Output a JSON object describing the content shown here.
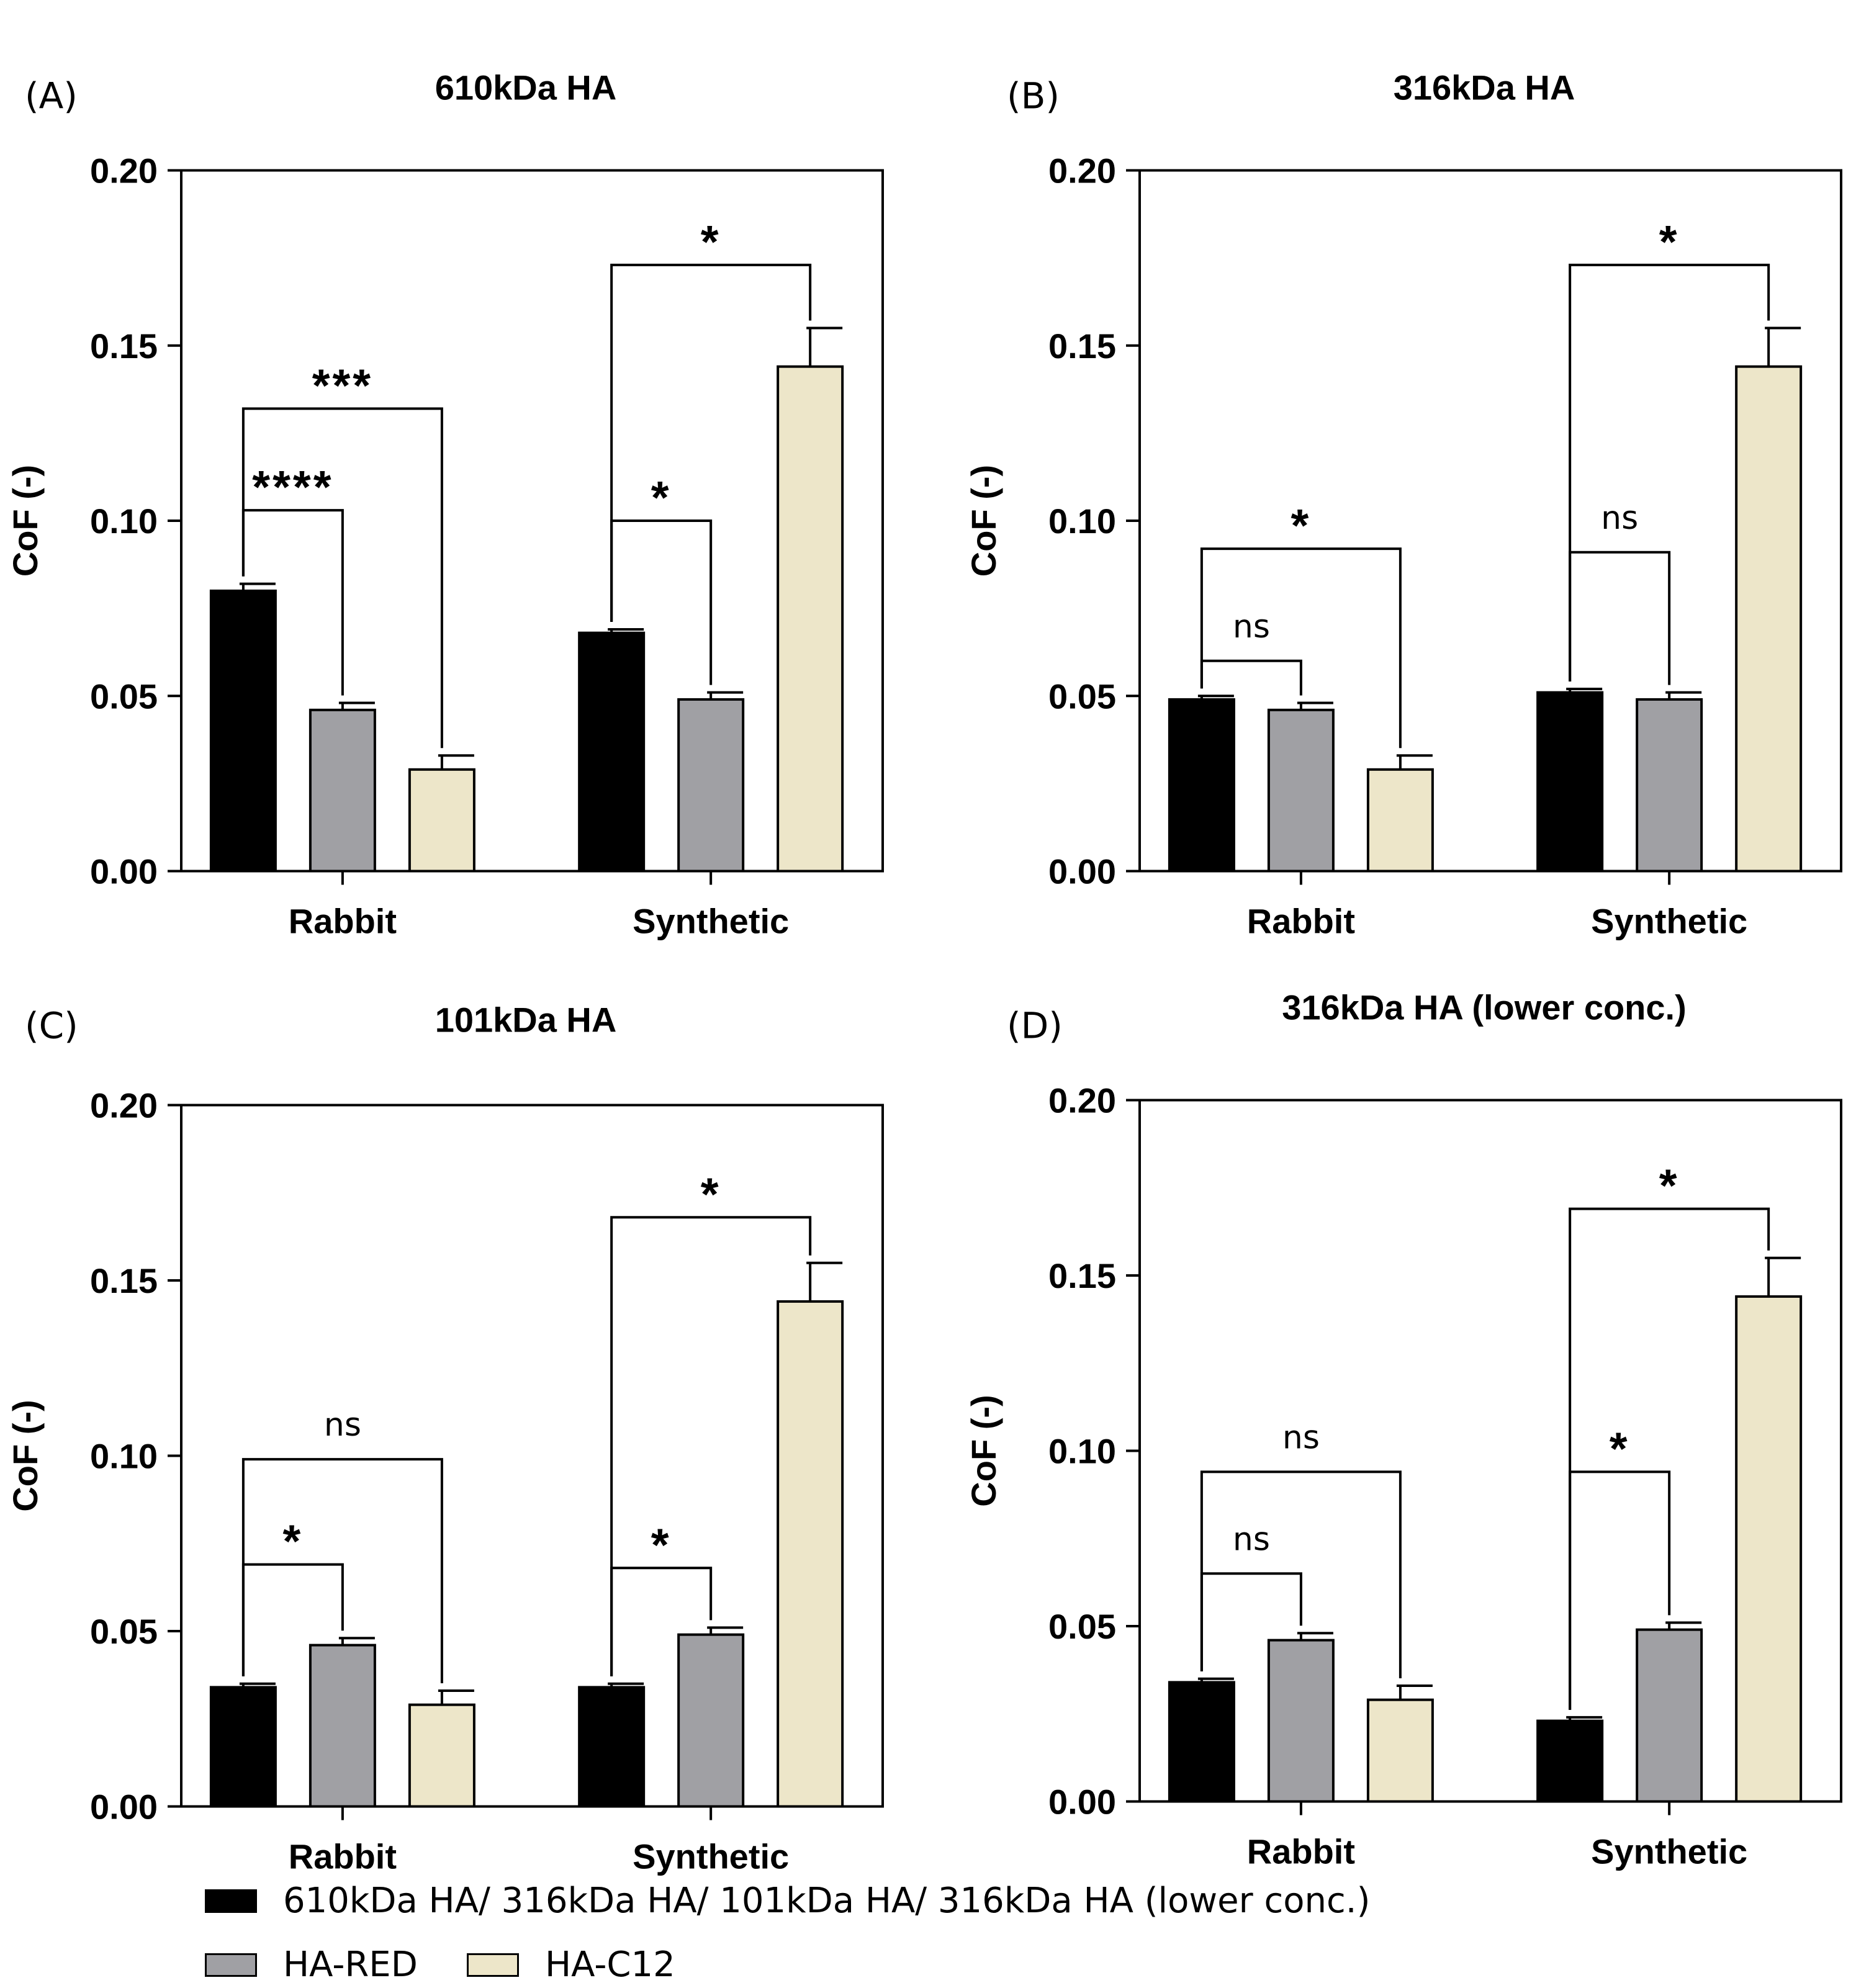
{
  "figure": {
    "colors": {
      "HA": "#000000",
      "HA-RED": "#a0a0a4",
      "HA-C12": "#ede6c9",
      "axis": "#000000"
    },
    "legend": {
      "ha_label": "610kDa HA/  316kDa HA/  101kDa HA/  316kDa HA (lower conc.)",
      "red_label": "HA-RED",
      "c12_label": "HA-C12"
    }
  },
  "chart_data": [
    {
      "panel": "(A)",
      "title": "610kDa HA",
      "type": "bar",
      "ylabel": "CoF (-)",
      "ylim": [
        0,
        0.2
      ],
      "yticks": [
        "0.00",
        "0.05",
        "0.10",
        "0.15",
        "0.20"
      ],
      "categories": [
        "Rabbit",
        "Synthetic"
      ],
      "series": [
        {
          "name": "HA",
          "values": [
            0.08,
            0.068
          ],
          "errors": [
            0.002,
            0.001
          ]
        },
        {
          "name": "HA-RED",
          "values": [
            0.046,
            0.049
          ],
          "errors": [
            0.002,
            0.002
          ]
        },
        {
          "name": "HA-C12",
          "values": [
            0.029,
            0.144
          ],
          "errors": [
            0.004,
            0.011
          ]
        }
      ],
      "comparisons": [
        {
          "category": 0,
          "from": 0,
          "to": 1,
          "label": "****",
          "y": 0.103
        },
        {
          "category": 0,
          "from": 0,
          "to": 2,
          "label": "***",
          "y": 0.132
        },
        {
          "category": 1,
          "from": 0,
          "to": 1,
          "label": "*",
          "y": 0.1
        },
        {
          "category": 1,
          "from": 0,
          "to": 2,
          "label": "*",
          "y": 0.173
        }
      ]
    },
    {
      "panel": "(B)",
      "title": "316kDa HA",
      "type": "bar",
      "ylabel": "CoF (-)",
      "ylim": [
        0,
        0.2
      ],
      "yticks": [
        "0.00",
        "0.05",
        "0.10",
        "0.15",
        "0.20"
      ],
      "categories": [
        "Rabbit",
        "Synthetic"
      ],
      "series": [
        {
          "name": "HA",
          "values": [
            0.049,
            0.051
          ],
          "errors": [
            0.001,
            0.001
          ]
        },
        {
          "name": "HA-RED",
          "values": [
            0.046,
            0.049
          ],
          "errors": [
            0.002,
            0.002
          ]
        },
        {
          "name": "HA-C12",
          "values": [
            0.029,
            0.144
          ],
          "errors": [
            0.004,
            0.011
          ]
        }
      ],
      "comparisons": [
        {
          "category": 0,
          "from": 0,
          "to": 1,
          "label": "ns",
          "y": 0.06
        },
        {
          "category": 0,
          "from": 0,
          "to": 2,
          "label": "*",
          "y": 0.092
        },
        {
          "category": 1,
          "from": 0,
          "to": 1,
          "label": "ns",
          "y": 0.091
        },
        {
          "category": 1,
          "from": 0,
          "to": 2,
          "label": "*",
          "y": 0.173
        }
      ]
    },
    {
      "panel": "(C)",
      "title": "101kDa HA",
      "type": "bar",
      "ylabel": "CoF (-)",
      "ylim": [
        0,
        0.2
      ],
      "yticks": [
        "0.00",
        "0.05",
        "0.10",
        "0.15",
        "0.20"
      ],
      "categories": [
        "Rabbit",
        "Synthetic"
      ],
      "series": [
        {
          "name": "HA",
          "values": [
            0.034,
            0.034
          ],
          "errors": [
            0.001,
            0.001
          ]
        },
        {
          "name": "HA-RED",
          "values": [
            0.046,
            0.049
          ],
          "errors": [
            0.002,
            0.002
          ]
        },
        {
          "name": "HA-C12",
          "values": [
            0.029,
            0.144
          ],
          "errors": [
            0.004,
            0.011
          ]
        }
      ],
      "comparisons": [
        {
          "category": 0,
          "from": 0,
          "to": 1,
          "label": "*",
          "y": 0.069
        },
        {
          "category": 0,
          "from": 0,
          "to": 2,
          "label": "ns",
          "y": 0.099
        },
        {
          "category": 1,
          "from": 0,
          "to": 1,
          "label": "*",
          "y": 0.068
        },
        {
          "category": 1,
          "from": 0,
          "to": 2,
          "label": "*",
          "y": 0.168
        }
      ]
    },
    {
      "panel": "(D)",
      "title": "316kDa HA (lower conc.)",
      "type": "bar",
      "ylabel": "CoF (-)",
      "ylim": [
        0,
        0.2
      ],
      "yticks": [
        "0.00",
        "0.05",
        "0.10",
        "0.15",
        "0.20"
      ],
      "categories": [
        "Rabbit",
        "Synthetic"
      ],
      "series": [
        {
          "name": "HA",
          "values": [
            0.034,
            0.023
          ],
          "errors": [
            0.001,
            0.001
          ]
        },
        {
          "name": "HA-RED",
          "values": [
            0.046,
            0.049
          ],
          "errors": [
            0.002,
            0.002
          ]
        },
        {
          "name": "HA-C12",
          "values": [
            0.029,
            0.144
          ],
          "errors": [
            0.004,
            0.011
          ]
        }
      ],
      "comparisons": [
        {
          "category": 0,
          "from": 0,
          "to": 1,
          "label": "ns",
          "y": 0.065
        },
        {
          "category": 0,
          "from": 0,
          "to": 2,
          "label": "ns",
          "y": 0.094
        },
        {
          "category": 1,
          "from": 0,
          "to": 1,
          "label": "*",
          "y": 0.094
        },
        {
          "category": 1,
          "from": 0,
          "to": 2,
          "label": "*",
          "y": 0.169
        }
      ]
    }
  ]
}
